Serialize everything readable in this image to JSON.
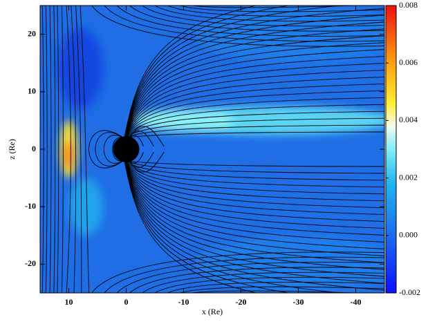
{
  "chart_data": {
    "type": "field",
    "xlabel": "x (Re)",
    "ylabel": "z (Re)",
    "xlim": [
      15,
      -45
    ],
    "xticks": [
      10,
      0,
      -10,
      -20,
      -30,
      -40
    ],
    "ylim": [
      -25,
      25
    ],
    "yticks": [
      -20,
      -10,
      0,
      10,
      20
    ],
    "clim": [
      -0.002,
      0.008
    ],
    "cticks": [
      -0.002,
      {
        "value": 0,
        "label": "0.000"
      },
      0.002,
      0.004,
      0.006,
      0.008
    ]
  }
}
